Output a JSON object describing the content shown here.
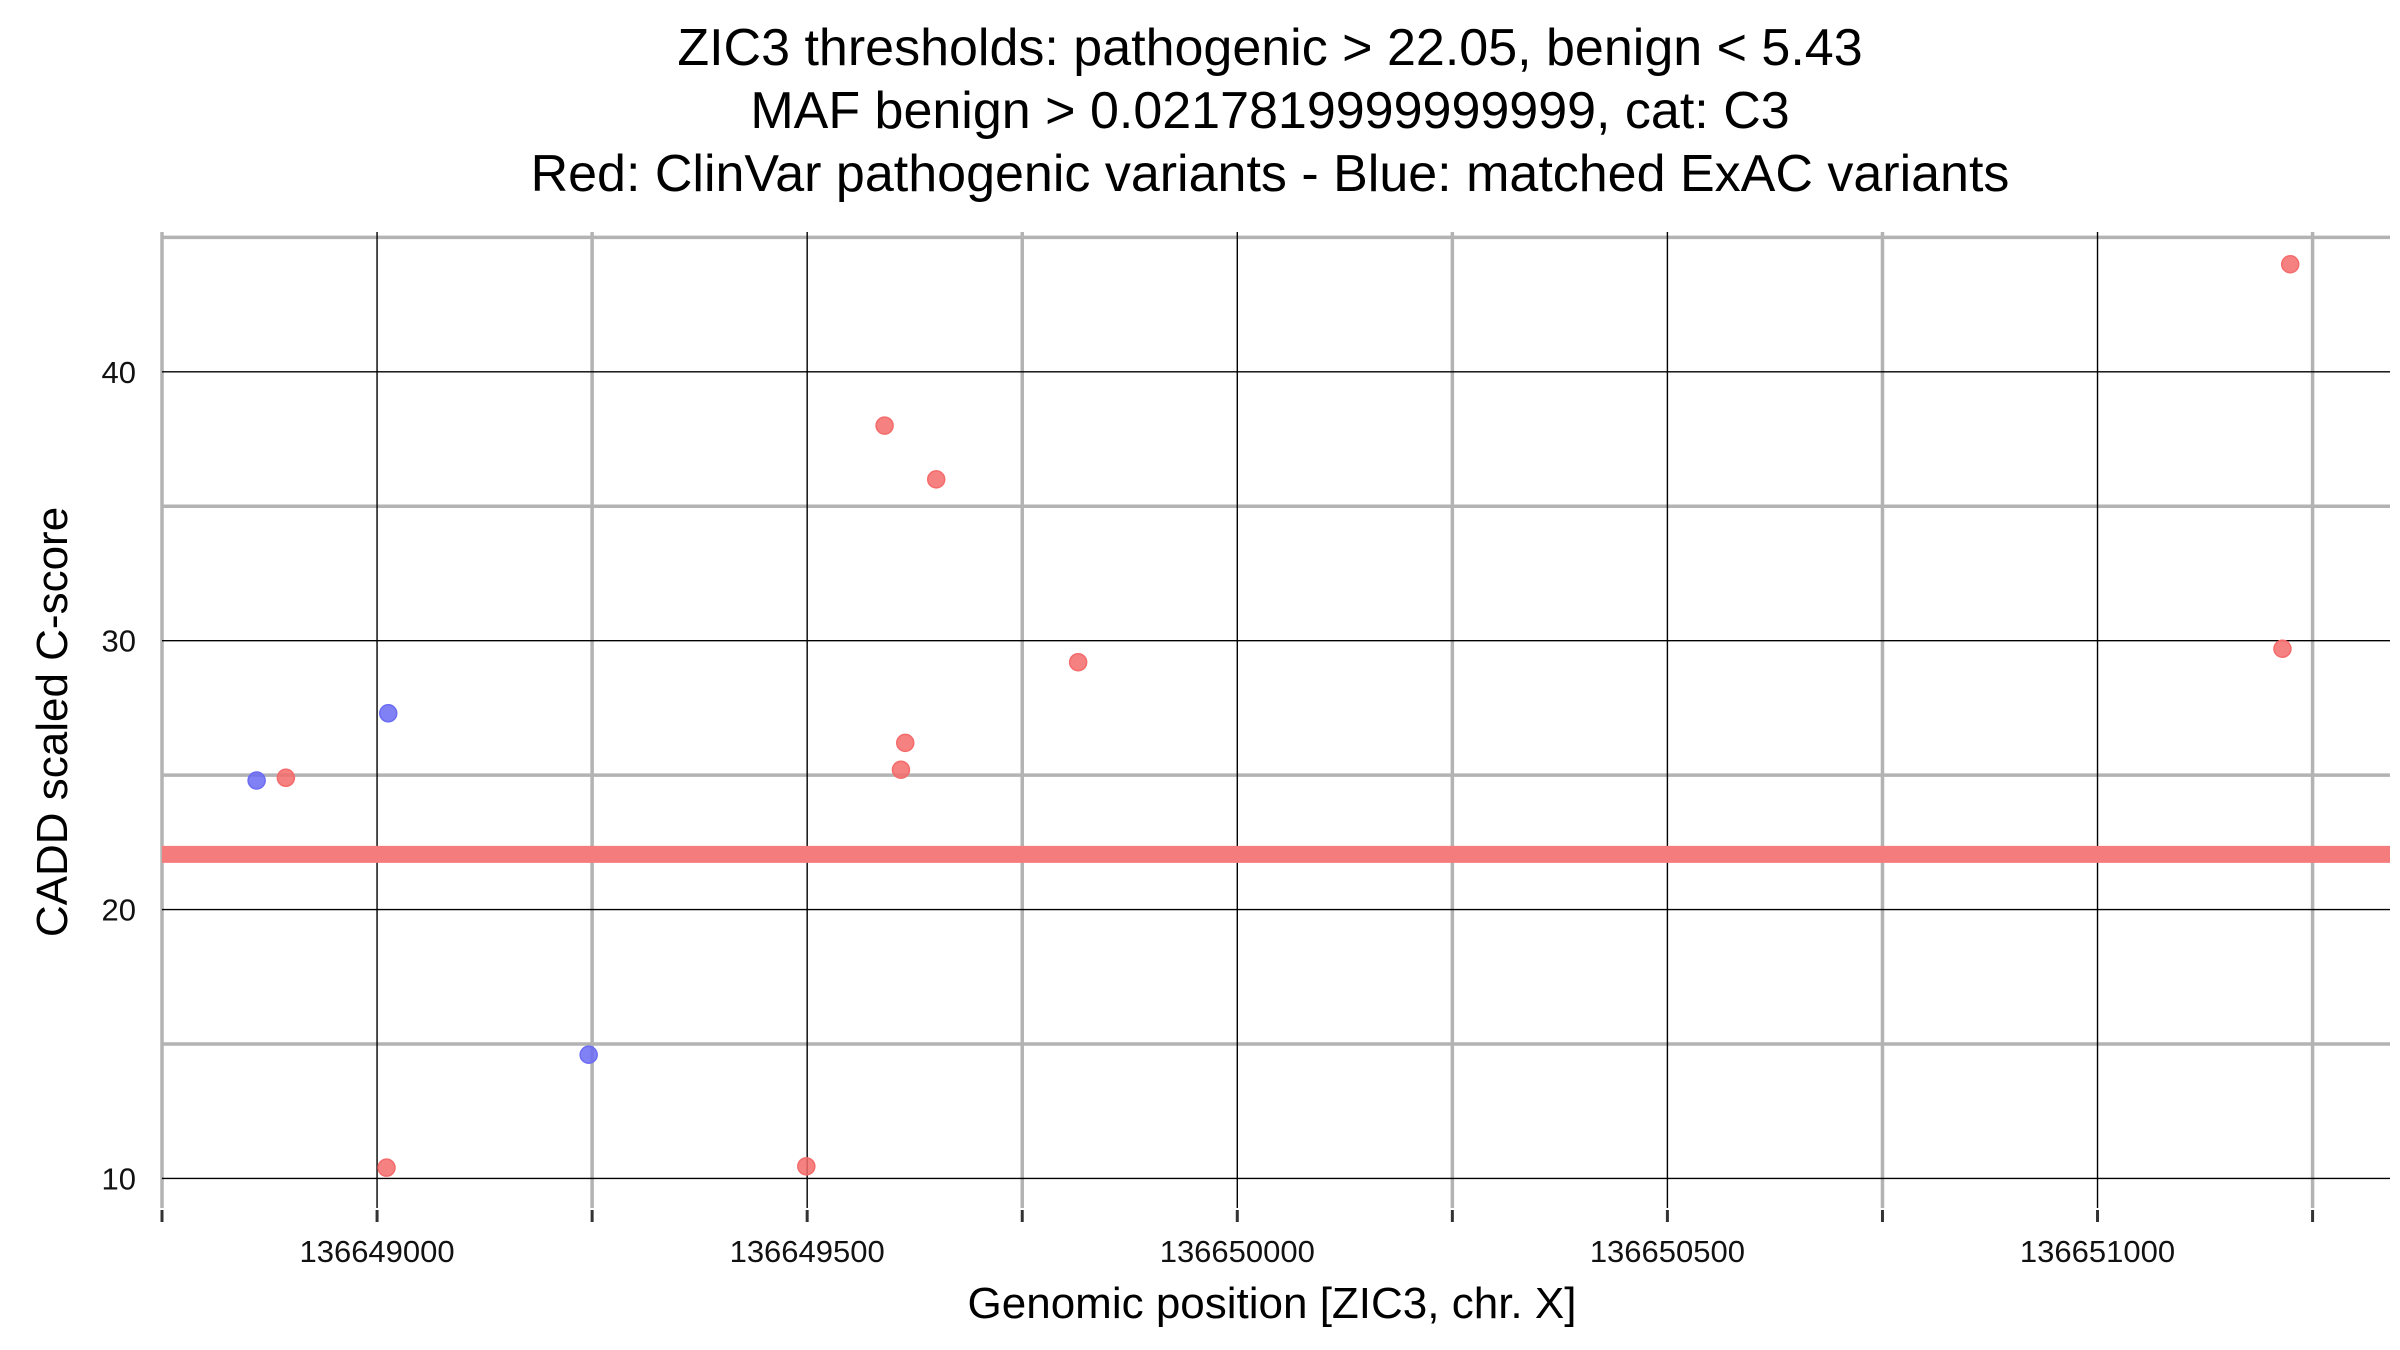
{
  "chart_data": {
    "type": "scatter",
    "title_lines": [
      "ZIC3 thresholds: pathogenic > 22.05, benign < 5.43",
      "MAF benign > 0.0217819999999999, cat: C3",
      "Red: ClinVar pathogenic variants - Blue: matched ExAC variants"
    ],
    "xlabel": "Genomic position [ZIC3, chr. X]",
    "ylabel": "CADD scaled C-score",
    "xlim": [
      136648750,
      136651340
    ],
    "ylim": [
      8.9,
      45.2
    ],
    "x_ticks": [
      136649000,
      136649500,
      136650000,
      136650500,
      136651000
    ],
    "x_tick_labels": [
      "136649000",
      "136649500",
      "136650000",
      "136650500",
      "136651000"
    ],
    "x_minor_ticks": [
      136648750,
      136649250,
      136649750,
      136650250,
      136650750,
      136651250
    ],
    "y_ticks": [
      10,
      20,
      30,
      40
    ],
    "y_tick_labels": [
      "10",
      "20",
      "30",
      "40"
    ],
    "y_minor_ticks": [
      15,
      25,
      35,
      45
    ],
    "grid": true,
    "threshold_line": {
      "y": 22.05,
      "color": "#f47c7c"
    },
    "series": [
      {
        "name": "ClinVar pathogenic",
        "color": "#f46b6b",
        "points": [
          {
            "x": 136648894,
            "y": 24.9
          },
          {
            "x": 136649011,
            "y": 10.4
          },
          {
            "x": 136649499,
            "y": 10.45
          },
          {
            "x": 136649590,
            "y": 38.0
          },
          {
            "x": 136649609,
            "y": 25.2
          },
          {
            "x": 136649614,
            "y": 26.2
          },
          {
            "x": 136649650,
            "y": 36.0
          },
          {
            "x": 136649815,
            "y": 29.2
          },
          {
            "x": 136651215,
            "y": 29.7
          },
          {
            "x": 136651224,
            "y": 44.0
          }
        ]
      },
      {
        "name": "matched ExAC",
        "color": "#6b6bf4",
        "points": [
          {
            "x": 136648860,
            "y": 24.8
          },
          {
            "x": 136649013,
            "y": 27.3
          },
          {
            "x": 136649246,
            "y": 14.6
          }
        ]
      }
    ]
  }
}
